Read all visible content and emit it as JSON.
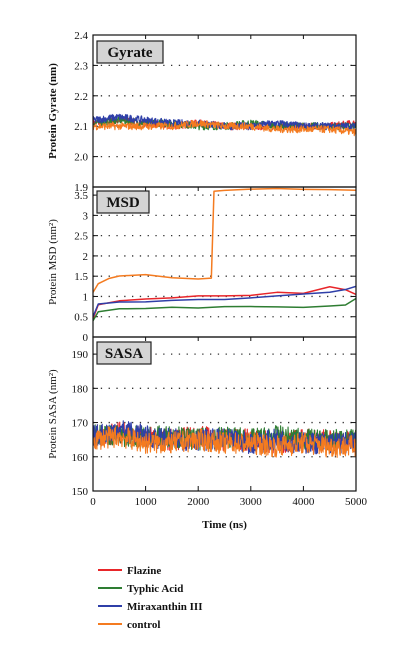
{
  "chart_data": {
    "type": "line",
    "x_axis": {
      "label": "Time (ns)",
      "ticks": [
        "0",
        "1000",
        "2000",
        "3000",
        "4000",
        "5000"
      ],
      "xlim": [
        0,
        5000
      ]
    },
    "legend": {
      "placement": "bottom",
      "entries": [
        {
          "name": "Flazine",
          "color": "#e8262a"
        },
        {
          "name": "Typhic Acid",
          "color": "#2e7d32"
        },
        {
          "name": "Miraxanthin III",
          "color": "#2f3fa8"
        },
        {
          "name": "control",
          "color": "#f47b20"
        }
      ]
    },
    "panels": [
      {
        "tag": "Gyrate",
        "ylabel": "Protein Gyrate (nm)",
        "ylim": [
          1.9,
          2.4
        ],
        "y_ticks": [
          "1.9",
          "2.0",
          "2.1",
          "2.2",
          "2.3",
          "2.4"
        ],
        "grid": "dotted",
        "series": [
          {
            "name": "Flazine",
            "x": [
              0,
              500,
              1000,
              1500,
              2000,
              2500,
              3000,
              3500,
              4000,
              4500,
              5000
            ],
            "y": [
              2.11,
              2.12,
              2.11,
              2.1,
              2.11,
              2.1,
              2.1,
              2.1,
              2.1,
              2.1,
              2.11
            ]
          },
          {
            "name": "Typhic Acid",
            "x": [
              0,
              500,
              1000,
              1500,
              2000,
              2500,
              3000,
              3500,
              4000,
              4500,
              5000
            ],
            "y": [
              2.11,
              2.12,
              2.11,
              2.11,
              2.1,
              2.1,
              2.11,
              2.1,
              2.1,
              2.1,
              2.1
            ]
          },
          {
            "name": "Miraxanthin III",
            "x": [
              0,
              500,
              1000,
              1500,
              2000,
              2500,
              3000,
              3500,
              4000,
              4500,
              5000
            ],
            "y": [
              2.12,
              2.13,
              2.12,
              2.11,
              2.11,
              2.1,
              2.1,
              2.11,
              2.1,
              2.1,
              2.1
            ]
          },
          {
            "name": "control",
            "x": [
              0,
              500,
              1000,
              1500,
              2000,
              2500,
              3000,
              3500,
              4000,
              4500,
              5000
            ],
            "y": [
              2.1,
              2.1,
              2.1,
              2.1,
              2.11,
              2.1,
              2.1,
              2.09,
              2.09,
              2.09,
              2.08
            ]
          }
        ]
      },
      {
        "tag": "MSD",
        "ylabel": "Protein MSD (nm²)",
        "ylim": [
          0,
          3.7
        ],
        "y_ticks": [
          "0",
          "0.5",
          "1",
          "1.5",
          "2",
          "2.5",
          "3",
          "3.5"
        ],
        "grid": "dotted",
        "series": [
          {
            "name": "Flazine",
            "x": [
              0,
              100,
              500,
              1000,
              1500,
              2000,
              2500,
              3000,
              3500,
              4000,
              4500,
              4800,
              5000
            ],
            "y": [
              0.45,
              0.8,
              0.88,
              0.93,
              0.97,
              1.0,
              1.02,
              1.04,
              1.1,
              1.08,
              1.22,
              1.15,
              1.05
            ]
          },
          {
            "name": "Typhic Acid",
            "x": [
              0,
              100,
              500,
              1000,
              1500,
              2000,
              2500,
              3000,
              3500,
              4000,
              4500,
              4800,
              5000
            ],
            "y": [
              0.4,
              0.62,
              0.68,
              0.7,
              0.72,
              0.73,
              0.73,
              0.74,
              0.74,
              0.75,
              0.75,
              0.78,
              0.95
            ]
          },
          {
            "name": "Miraxanthin III",
            "x": [
              0,
              100,
              500,
              1000,
              1500,
              2000,
              2500,
              3000,
              3500,
              4000,
              4500,
              4800,
              5000
            ],
            "y": [
              0.5,
              0.82,
              0.85,
              0.88,
              0.9,
              0.92,
              0.94,
              0.97,
              1.0,
              1.05,
              1.1,
              1.18,
              1.25
            ]
          },
          {
            "name": "control",
            "x": [
              0,
              100,
              300,
              500,
              1000,
              1500,
              2000,
              2250,
              2300,
              2500,
              3000,
              3500,
              4000,
              4500,
              5000
            ],
            "y": [
              1.1,
              1.3,
              1.45,
              1.5,
              1.52,
              1.48,
              1.45,
              1.45,
              3.6,
              3.62,
              3.64,
              3.65,
              3.65,
              3.64,
              3.62
            ]
          }
        ]
      },
      {
        "tag": "SASA",
        "ylabel": "Protein SASA (nm²)",
        "ylim": [
          150,
          195
        ],
        "y_ticks": [
          "150",
          "160",
          "170",
          "180",
          "190"
        ],
        "grid": "dotted",
        "series": [
          {
            "name": "Flazine",
            "x": [
              0,
              500,
              1000,
              1500,
              2000,
              2500,
              3000,
              3500,
              4000,
              4500,
              5000
            ],
            "y": [
              166,
              167,
              166,
              165,
              166,
              165,
              165,
              164,
              165,
              165,
              164
            ]
          },
          {
            "name": "Typhic Acid",
            "x": [
              0,
              500,
              1000,
              1500,
              2000,
              2500,
              3000,
              3500,
              4000,
              4500,
              5000
            ],
            "y": [
              167,
              166,
              166,
              166,
              165,
              166,
              165,
              166,
              165,
              165,
              165
            ]
          },
          {
            "name": "Miraxanthin III",
            "x": [
              0,
              500,
              1000,
              1500,
              2000,
              2500,
              3000,
              3500,
              4000,
              4500,
              5000
            ],
            "y": [
              166,
              168,
              166,
              165,
              165,
              165,
              164,
              165,
              164,
              164,
              164
            ]
          },
          {
            "name": "control",
            "x": [
              0,
              500,
              1000,
              1500,
              2000,
              2500,
              3000,
              3500,
              4000,
              4500,
              5000
            ],
            "y": [
              165,
              166,
              164,
              164,
              165,
              164,
              164,
              163,
              164,
              163,
              163
            ]
          }
        ]
      }
    ]
  }
}
